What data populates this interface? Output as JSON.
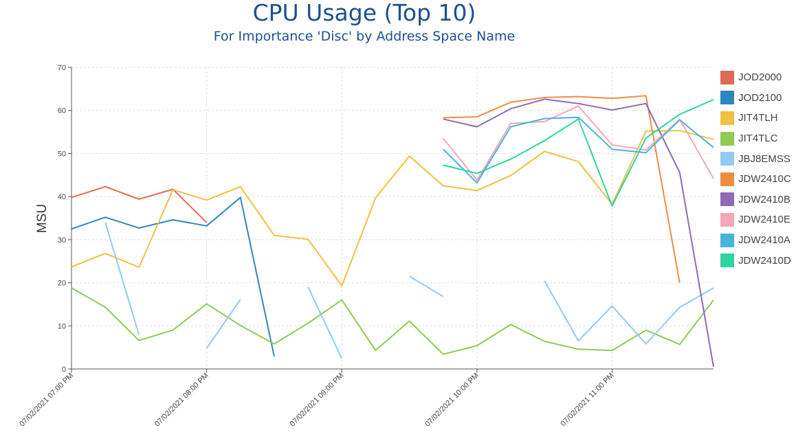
{
  "chart_data": {
    "type": "line",
    "title": "CPU Usage (Top 10)",
    "subtitle": "For Importance 'Disc' by Address Space Name",
    "xlabel": "",
    "ylabel": "MSU",
    "ylim": [
      0,
      70
    ],
    "yticks": [
      0,
      10,
      20,
      30,
      40,
      50,
      60,
      70
    ],
    "grid": true,
    "legend_position": "right",
    "x": [
      "07/02/2021 07:00 PM",
      "07:15 PM",
      "07:30 PM",
      "07:45 PM",
      "07/02/2021 08:00 PM",
      "08:15 PM",
      "08:30 PM",
      "08:45 PM",
      "07/02/2021 09:00 PM",
      "09:15 PM",
      "09:30 PM",
      "09:45 PM",
      "07/02/2021 10:00 PM",
      "10:15 PM",
      "10:30 PM",
      "10:45 PM",
      "07/02/2021 11:00 PM",
      "11:15 PM",
      "11:30 PM",
      "11:45 PM"
    ],
    "x_tick_labels": [
      "07/02/2021 07:00 PM",
      "07/02/2021 08:00 PM",
      "07/02/2021 09:00 PM",
      "07/02/2021 10:00 PM",
      "07/02/2021 11:00 PM"
    ],
    "x_tick_index": [
      0,
      4,
      8,
      12,
      16
    ],
    "series": [
      {
        "name": "JOD2000",
        "color": "#dd6b56",
        "values": [
          39.8,
          42.3,
          39.4,
          41.7,
          34,
          null,
          null,
          null,
          null,
          null,
          null,
          null,
          null,
          null,
          null,
          null,
          null,
          null,
          null,
          null
        ]
      },
      {
        "name": "JOD2100",
        "color": "#2e86c1",
        "values": [
          32.5,
          35.2,
          32.7,
          34.6,
          33.2,
          39.8,
          2.9,
          null,
          null,
          null,
          null,
          null,
          null,
          null,
          null,
          null,
          null,
          null,
          null,
          null
        ]
      },
      {
        "name": "JIT4TLH",
        "color": "#f0c040",
        "values": [
          23.7,
          26.8,
          23.6,
          41.6,
          39.2,
          42.3,
          31,
          30.1,
          19.3,
          39.7,
          49.4,
          42.5,
          41.4,
          44.9,
          50.5,
          48.1,
          38.2,
          55.2,
          55.3,
          53.3
        ]
      },
      {
        "name": "JIT4TLC",
        "color": "#8dcb52",
        "values": [
          18.8,
          14.3,
          6.6,
          9,
          15.1,
          10.1,
          5.8,
          10.6,
          16,
          4.3,
          11.1,
          3.4,
          5.4,
          10.3,
          6.4,
          4.6,
          4.3,
          9,
          5.7,
          16
        ]
      },
      {
        "name": "JBJ8EMSS",
        "color": "#91cbf2",
        "values": [
          null,
          34,
          7.9,
          null,
          4.8,
          16.1,
          null,
          19,
          2.4,
          null,
          21.5,
          16.8,
          null,
          null,
          20.4,
          6.5,
          14.6,
          5.8,
          14.3,
          18.8
        ]
      },
      {
        "name": "JDW2410C",
        "color": "#ef8d3f",
        "values": [
          null,
          null,
          null,
          null,
          null,
          null,
          null,
          null,
          null,
          null,
          null,
          58.3,
          58.5,
          61.9,
          63,
          63.2,
          62.8,
          63.4,
          20,
          null
        ]
      },
      {
        "name": "JDW2410B",
        "color": "#8e6ab6",
        "values": [
          null,
          null,
          null,
          null,
          null,
          null,
          null,
          null,
          null,
          null,
          null,
          58,
          56.2,
          60.4,
          62.6,
          61.6,
          60.1,
          61.6,
          45.6,
          0.5
        ]
      },
      {
        "name": "JDW2410E",
        "color": "#f5a7b4",
        "values": [
          null,
          null,
          null,
          null,
          null,
          null,
          null,
          null,
          null,
          null,
          null,
          53.5,
          43.8,
          57,
          57.4,
          61,
          52,
          50.8,
          57.9,
          44.2
        ]
      },
      {
        "name": "JDW2410A",
        "color": "#4ab3d8",
        "values": [
          null,
          null,
          null,
          null,
          null,
          null,
          null,
          null,
          null,
          null,
          null,
          51,
          43.2,
          56.2,
          58.1,
          58.4,
          51,
          50.2,
          57.8,
          51.4
        ]
      },
      {
        "name": "JDW2410D",
        "color": "#2dd6a0",
        "values": [
          null,
          null,
          null,
          null,
          null,
          null,
          null,
          null,
          null,
          null,
          null,
          47.3,
          45.4,
          48.7,
          53,
          58,
          37.8,
          53.6,
          59.1,
          62.5
        ]
      }
    ]
  }
}
